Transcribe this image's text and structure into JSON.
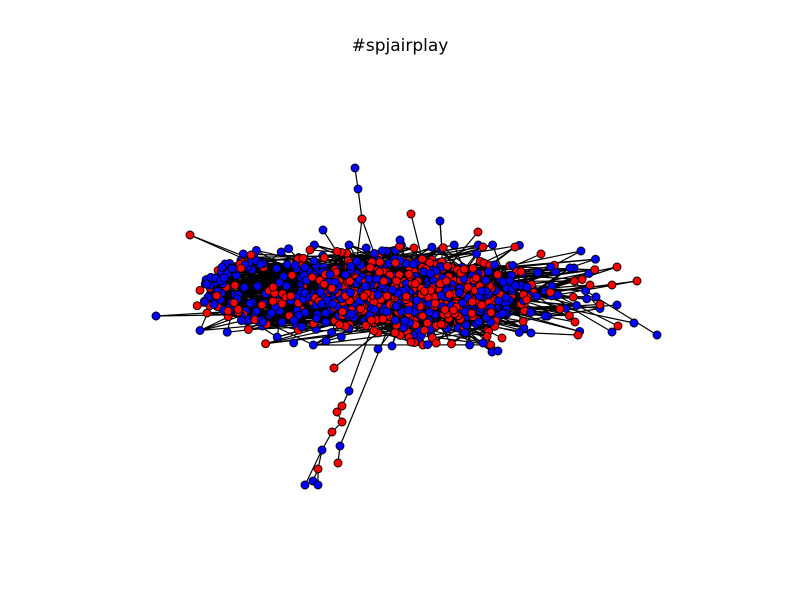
{
  "title": "#spjairplay",
  "graph": {
    "type": "network",
    "node_colors": {
      "red": "#ff0000",
      "blue": "#0000ff"
    },
    "edge_color": "#000000",
    "node_outline_color": "#000000",
    "background": "#ffffff",
    "axes": "hidden"
  }
}
